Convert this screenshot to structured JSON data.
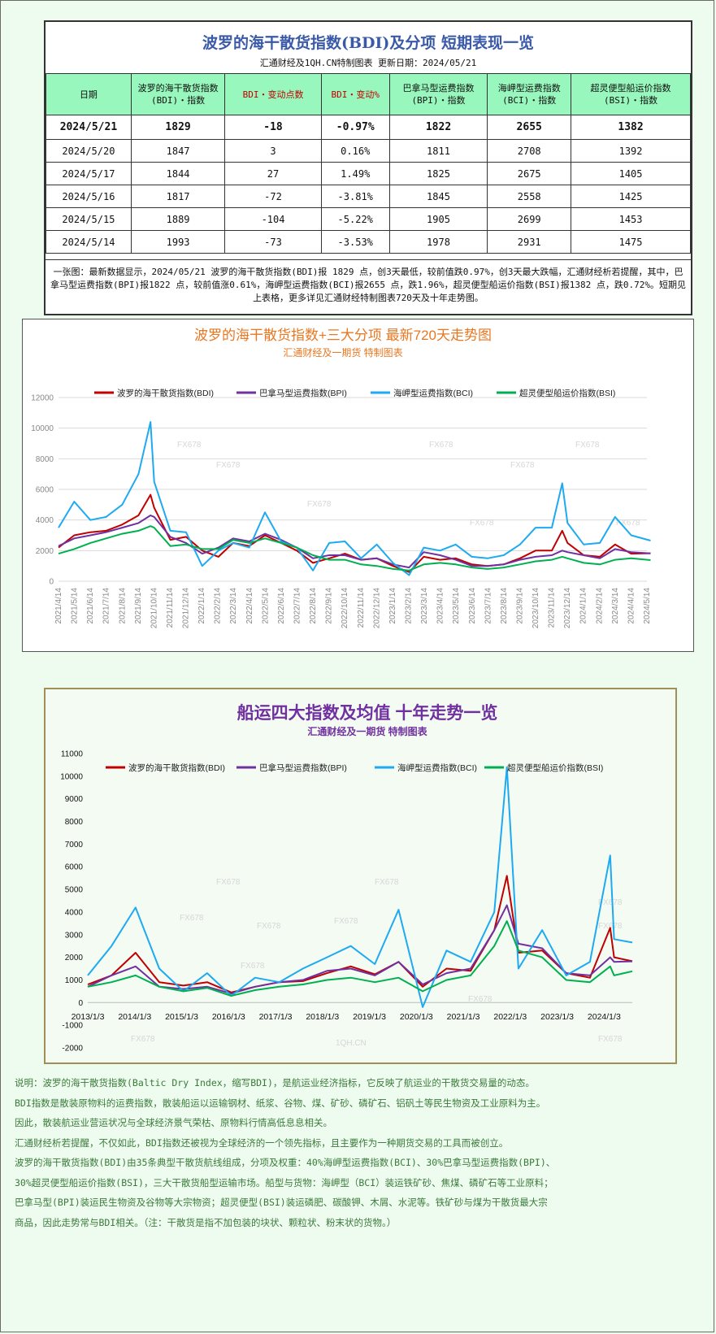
{
  "table": {
    "title": "波罗的海干散货指数(BDI)及分项 短期表现一览",
    "subtitle": "汇通财经及1QH.CN特制图表   更新日期：2024/05/21",
    "headers": [
      [
        "日期"
      ],
      [
        "波罗的海干散货指数",
        "(BDI)・指数"
      ],
      [
        "BDI・变动点数"
      ],
      [
        "BDI・变动%"
      ],
      [
        "巴拿马型运费指数",
        "(BPI)・指数"
      ],
      [
        "海岬型运费指数",
        "(BCI)・指数"
      ],
      [
        "超灵便型船运价指数",
        "(BSI)・指数"
      ]
    ],
    "rows": [
      [
        "2024/5/21",
        "1829",
        "-18",
        "-0.97%",
        "1822",
        "2655",
        "1382"
      ],
      [
        "2024/5/20",
        "1847",
        "3",
        "0.16%",
        "1811",
        "2708",
        "1392"
      ],
      [
        "2024/5/17",
        "1844",
        "27",
        "1.49%",
        "1825",
        "2675",
        "1405"
      ],
      [
        "2024/5/16",
        "1817",
        "-72",
        "-3.81%",
        "1845",
        "2558",
        "1425"
      ],
      [
        "2024/5/15",
        "1889",
        "-104",
        "-5.22%",
        "1905",
        "2699",
        "1453"
      ],
      [
        "2024/5/14",
        "1993",
        "-73",
        "-3.53%",
        "1978",
        "2931",
        "1475"
      ]
    ],
    "note": "一张图：最新数据显示，2024/05/21 波罗的海干散货指数(BDI)报 1829 点，创3天最低，较前值跌0.97%，创3天最大跌幅，汇通财经析若提醒，其中，巴拿马型运费指数(BPI)报1822 点，较前值涨0.61%，海岬型运费指数(BCI)报2655 点，跌1.96%，超灵便型船运价指数(BSI)报1382 点，跌0.72%。短期见上表格，更多详见汇通财经特制图表720天及十年走势图。"
  },
  "colors": {
    "bdi": "#c00000",
    "bpi": "#7030a0",
    "bci": "#1eaaf1",
    "bsi": "#00b050",
    "grid": "#d9d9d9"
  },
  "watermarks": [
    "FX678",
    "1QH.CN"
  ],
  "chart_data": [
    {
      "type": "line",
      "title": "波罗的海干散货指数+三大分项 最新720天走势图",
      "subtitle": "汇通财经及一期货 特制图表",
      "legend_position": "top",
      "ylim": [
        0,
        12000
      ],
      "yticks": [
        "0",
        "2000",
        "4000",
        "6000",
        "8000",
        "10000",
        "12000"
      ],
      "grid": true,
      "x_tick_labels": [
        "2021/4/14",
        "2021/5/14",
        "2021/6/14",
        "2021/7/14",
        "2021/8/14",
        "2021/9/14",
        "2021/10/14",
        "2021/11/14",
        "2021/12/14",
        "2022/1/14",
        "2022/2/14",
        "2022/3/14",
        "2022/4/14",
        "2022/5/14",
        "2022/6/14",
        "2022/7/14",
        "2022/8/14",
        "2022/9/14",
        "2022/10/14",
        "2022/11/14",
        "2022/12/14",
        "2023/1/14",
        "2023/2/14",
        "2023/3/14",
        "2023/4/14",
        "2023/5/14",
        "2023/6/14",
        "2023/7/14",
        "2023/8/14",
        "2023/9/14",
        "2023/10/14",
        "2023/11/14",
        "2023/12/14",
        "2024/1/14",
        "2024/2/14",
        "2024/3/14",
        "2024/4/14",
        "2024/5/14"
      ],
      "x": [
        "2021/4/14",
        "2021/5/14",
        "2021/6/14",
        "2021/7/14",
        "2021/8/14",
        "2021/9/14",
        "2021/10/7",
        "2021/10/14",
        "2021/11/14",
        "2021/12/14",
        "2022/1/14",
        "2022/2/14",
        "2022/3/14",
        "2022/4/14",
        "2022/5/14",
        "2022/6/14",
        "2022/7/14",
        "2022/8/14",
        "2022/9/14",
        "2022/10/14",
        "2022/11/14",
        "2022/12/14",
        "2023/1/14",
        "2023/2/14",
        "2023/3/14",
        "2023/4/14",
        "2023/5/14",
        "2023/6/14",
        "2023/7/14",
        "2023/8/14",
        "2023/9/14",
        "2023/10/14",
        "2023/11/14",
        "2023/12/4",
        "2023/12/14",
        "2024/1/14",
        "2024/2/14",
        "2024/3/14",
        "2024/4/14",
        "2024/5/21"
      ],
      "series": [
        {
          "name": "波罗的海干散货指数(BDI)",
          "values": [
            2200,
            3000,
            3200,
            3300,
            3700,
            4300,
            5650,
            4800,
            2700,
            2900,
            2000,
            1600,
            2500,
            2300,
            3000,
            2500,
            2000,
            1200,
            1500,
            1800,
            1400,
            1500,
            1000,
            600,
            1600,
            1400,
            1500,
            1100,
            1000,
            1100,
            1500,
            2000,
            2000,
            3300,
            2500,
            1700,
            1600,
            2400,
            1800,
            1829
          ]
        },
        {
          "name": "巴拿马型运费指数(BPI)",
          "values": [
            2300,
            2800,
            3000,
            3200,
            3500,
            3800,
            4300,
            4200,
            2900,
            2500,
            1800,
            2200,
            2800,
            2600,
            3100,
            2700,
            2200,
            1500,
            1700,
            1700,
            1400,
            1500,
            1100,
            900,
            1900,
            1700,
            1400,
            1000,
            1000,
            1100,
            1400,
            1600,
            1700,
            2000,
            1900,
            1700,
            1500,
            2100,
            1900,
            1822
          ]
        },
        {
          "name": "海岬型运费指数(BCI)",
          "values": [
            3500,
            5200,
            4000,
            4200,
            5000,
            7000,
            10400,
            6500,
            3300,
            3200,
            1000,
            2000,
            2500,
            2200,
            4500,
            2600,
            2200,
            700,
            2500,
            2600,
            1500,
            2400,
            1200,
            400,
            2200,
            2000,
            2400,
            1600,
            1500,
            1700,
            2400,
            3500,
            3500,
            6400,
            3800,
            2400,
            2500,
            4200,
            3000,
            2655
          ]
        },
        {
          "name": "超灵便型船运价指数(BSI)",
          "values": [
            1800,
            2100,
            2500,
            2800,
            3100,
            3300,
            3600,
            3500,
            2300,
            2400,
            2100,
            2100,
            2700,
            2500,
            2800,
            2500,
            2200,
            1700,
            1400,
            1400,
            1100,
            1000,
            800,
            700,
            1100,
            1200,
            1100,
            900,
            800,
            900,
            1100,
            1300,
            1400,
            1600,
            1500,
            1200,
            1100,
            1400,
            1500,
            1382
          ]
        }
      ]
    },
    {
      "type": "line",
      "title": "船运四大指数及均值 十年走势一览",
      "subtitle": "汇通财经及一期货 特制图表",
      "legend_position": "top",
      "ylim": [
        -2000,
        11000
      ],
      "yticks": [
        "-2000",
        "-1000",
        "0",
        "1000",
        "2000",
        "3000",
        "4000",
        "5000",
        "6000",
        "7000",
        "8000",
        "9000",
        "10000",
        "11000"
      ],
      "grid": false,
      "x_tick_labels": [
        "2013/1/3",
        "2014/1/3",
        "2015/1/3",
        "2016/1/3",
        "2017/1/3",
        "2018/1/3",
        "2019/1/3",
        "2020/1/3",
        "2021/1/3",
        "2022/1/3",
        "2023/1/3",
        "2024/1/3"
      ],
      "x": [
        "2013/1/3",
        "2013/7/3",
        "2014/1/3",
        "2014/7/3",
        "2015/1/3",
        "2015/7/3",
        "2016/1/3",
        "2016/7/3",
        "2017/1/3",
        "2017/7/3",
        "2018/1/3",
        "2018/7/3",
        "2019/1/3",
        "2019/7/3",
        "2020/1/3",
        "2020/7/3",
        "2021/1/3",
        "2021/7/3",
        "2021/10/7",
        "2022/1/3",
        "2022/7/3",
        "2023/1/3",
        "2023/7/3",
        "2023/12/4",
        "2024/1/3",
        "2024/5/21"
      ],
      "series": [
        {
          "name": "波罗的海干散货指数(BDI)",
          "values": [
            800,
            1200,
            2200,
            900,
            750,
            900,
            450,
            700,
            900,
            950,
            1300,
            1600,
            1250,
            1800,
            700,
            1500,
            1400,
            3200,
            5600,
            2200,
            2300,
            1300,
            1100,
            3300,
            2000,
            1829
          ]
        },
        {
          "name": "巴拿马型运费指数(BPI)",
          "values": [
            700,
            1200,
            1600,
            700,
            600,
            700,
            400,
            700,
            900,
            1000,
            1400,
            1500,
            1200,
            1800,
            800,
            1300,
            1500,
            3200,
            4300,
            2600,
            2400,
            1300,
            1200,
            2000,
            1800,
            1822
          ]
        },
        {
          "name": "海岬型运费指数(BCI)",
          "values": [
            1200,
            2500,
            4200,
            1500,
            500,
            1300,
            300,
            1100,
            900,
            1500,
            2000,
            2500,
            1700,
            4100,
            -200,
            2300,
            1800,
            4000,
            10400,
            1500,
            3200,
            1200,
            1800,
            6500,
            2800,
            2655
          ]
        },
        {
          "name": "超灵便型船运价指数(BSI)",
          "values": [
            700,
            900,
            1200,
            700,
            500,
            650,
            300,
            550,
            700,
            800,
            1000,
            1100,
            900,
            1100,
            500,
            1000,
            1200,
            2500,
            3600,
            2300,
            2000,
            1000,
            900,
            1600,
            1200,
            1382
          ]
        }
      ]
    }
  ],
  "footer": [
    "说明：波罗的海干散货指数(Baltic Dry Index，缩写BDI)，是航运业经济指标，它反映了航运业的干散货交易量的动态。",
    "BDI指数是散装原物料的运费指数，散装船运以运输钢材、纸浆、谷物、煤、矿砂、磷矿石、铝矾土等民生物资及工业原料为主。",
    "因此，散装航运业营运状况与全球经济景气荣枯、原物料行情高低息息相关。",
    "汇通财经析若提醒，不仅如此，BDI指数还被视为全球经济的一个领先指标，且主要作为一种期货交易的工具而被创立。",
    "波罗的海干散货指数(BDI)由35条典型干散货航线组成，分项及权重：40%海岬型运费指数(BCI)、30%巴拿马型运费指数(BPI)、",
    "30%超灵便型船运价指数(BSI)，三大干散货船型运输市场。船型与货物：海岬型（BCI）装运铁矿砂、焦煤、磷矿石等工业原料；",
    "巴拿马型(BPI)装运民生物资及谷物等大宗物资；超灵便型(BSI)装运磷肥、碳酸钾、木屑、水泥等。铁矿砂与煤为干散货最大宗",
    "商品，因此走势常与BDI相关。（注：干散货是指不加包装的块状、颗粒状、粉末状的货物。）"
  ]
}
